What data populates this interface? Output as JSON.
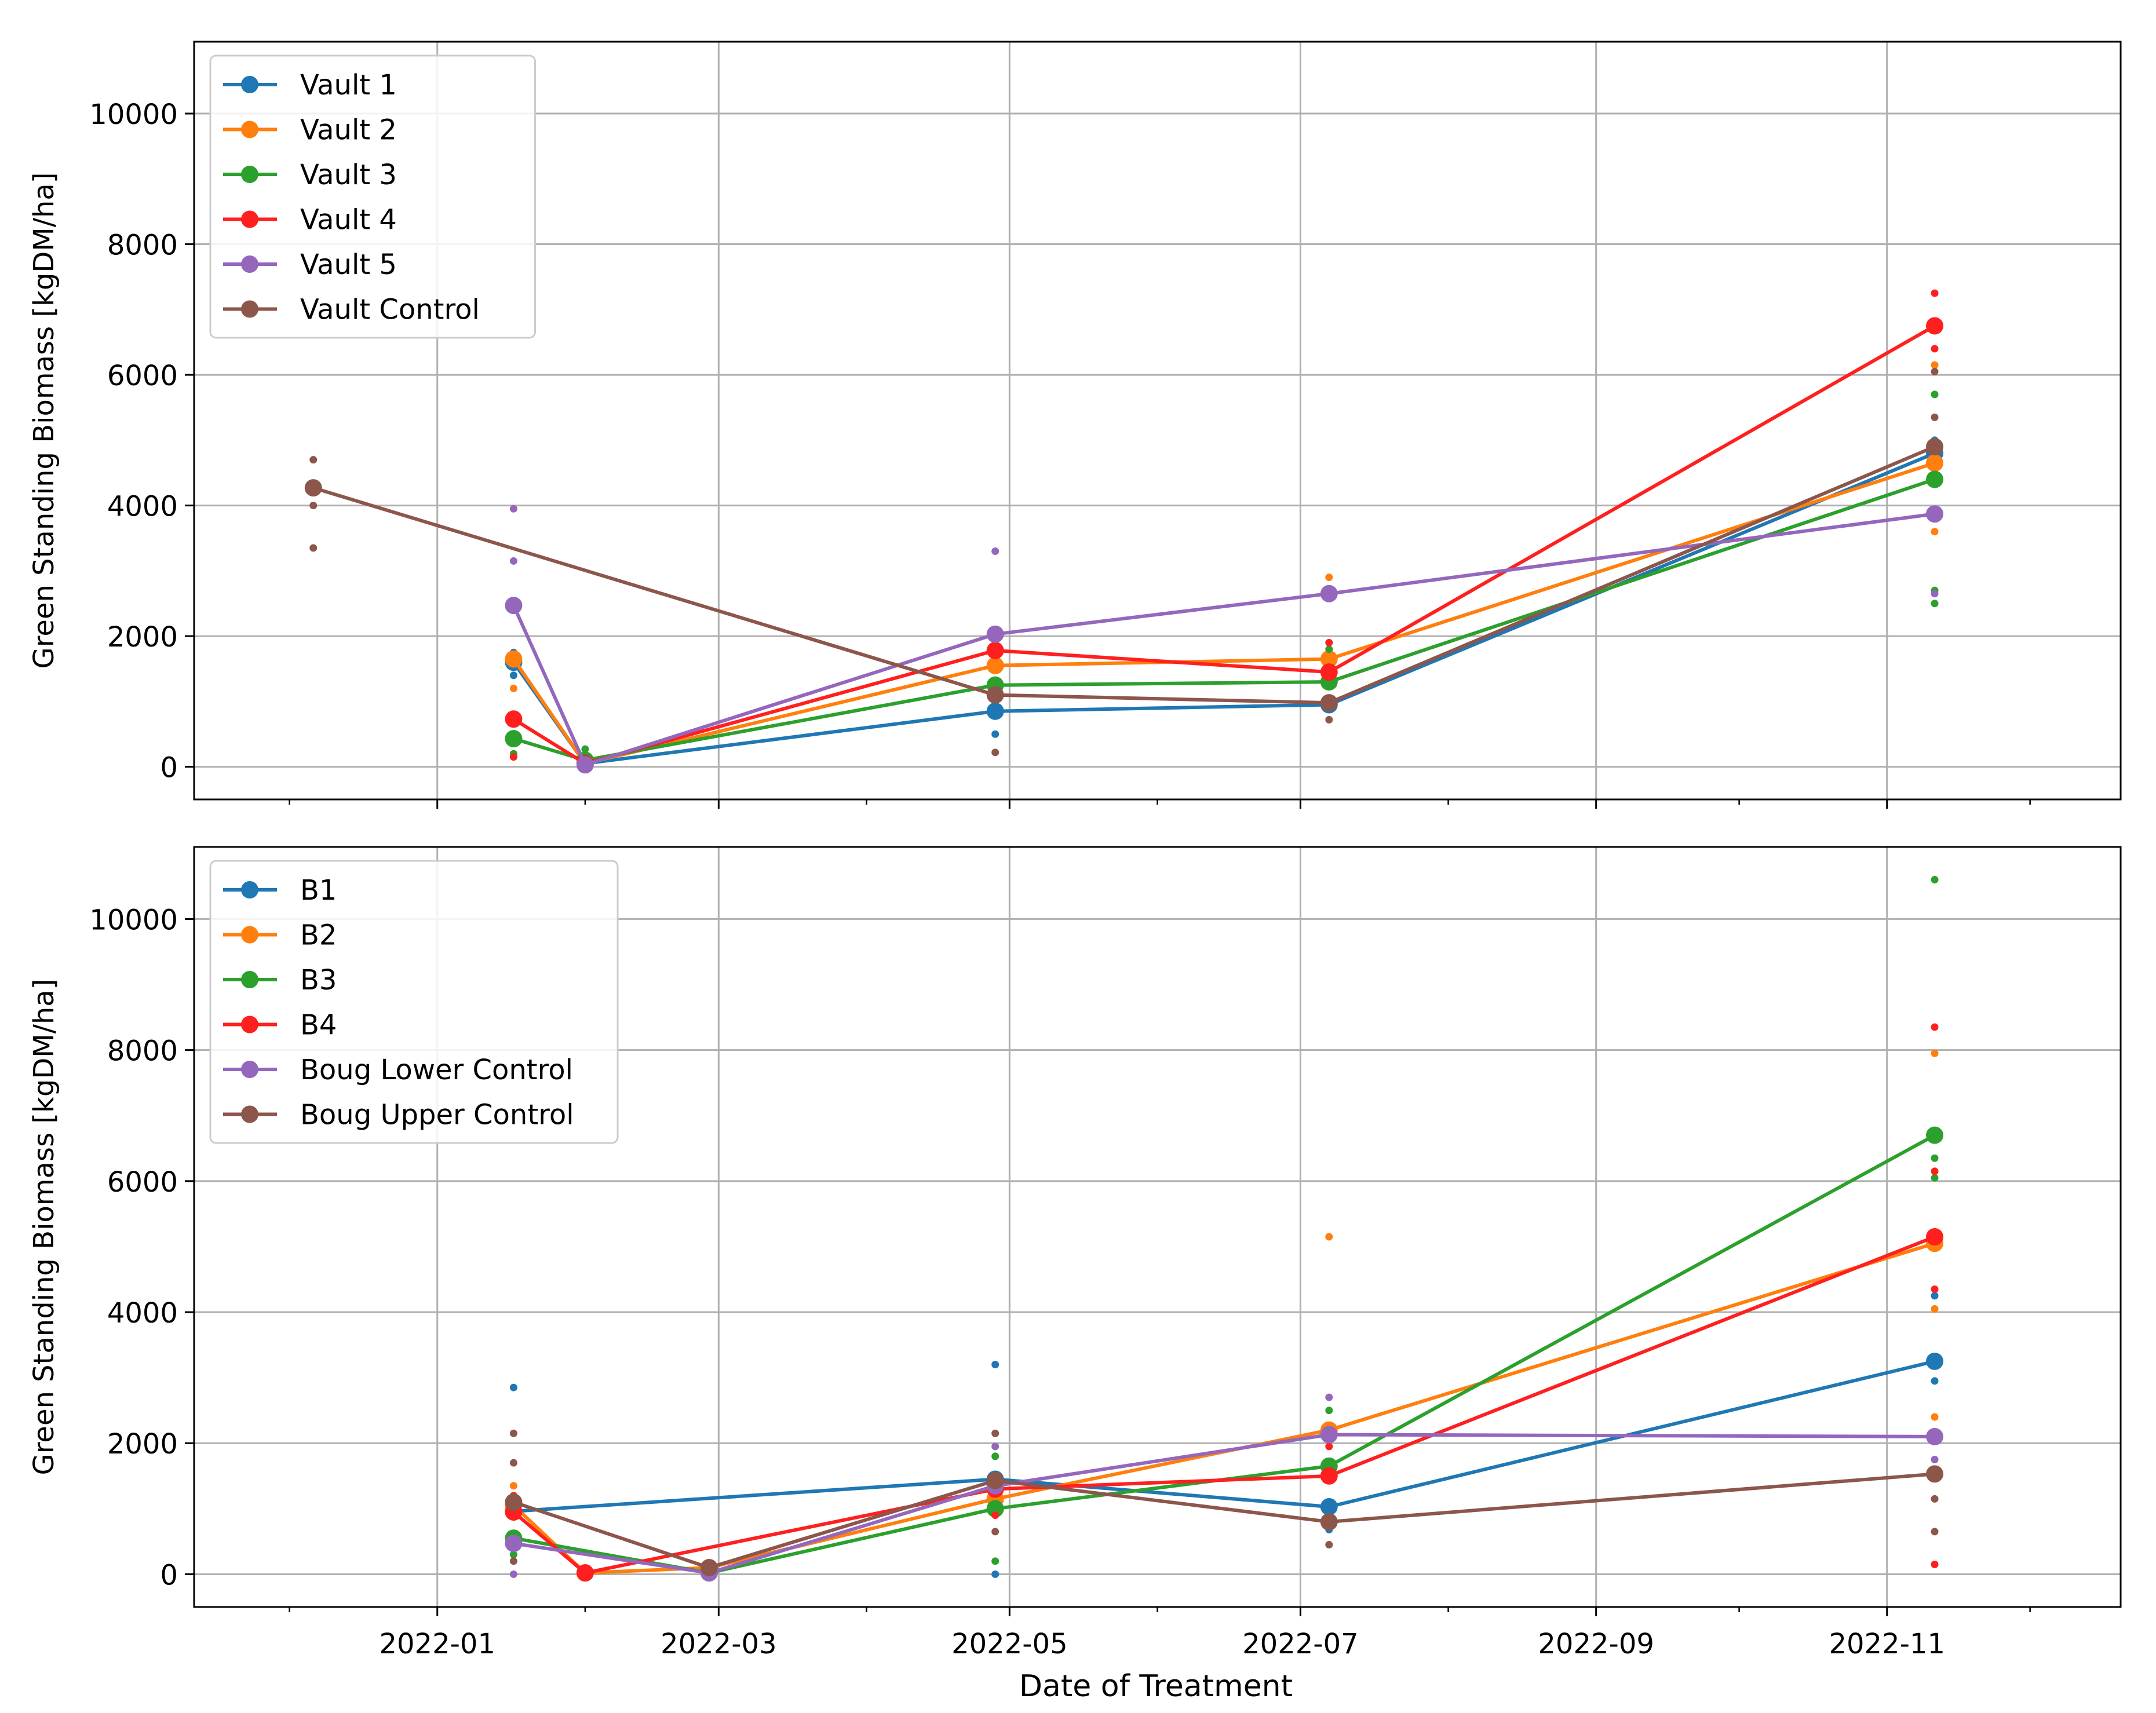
{
  "figure": {
    "xlabel": "Date of Treatment",
    "x_ticks": [
      "2022-01-01",
      "2022-03-01",
      "2022-05-01",
      "2022-07-01",
      "2022-09-01",
      "2022-11-01"
    ],
    "x_tick_labels": [
      "2022-01",
      "2022-03",
      "2022-05",
      "2022-07",
      "2022-09",
      "2022-11"
    ],
    "x_minor_ticks": [
      "2021-12-01",
      "2022-02-01",
      "2022-04-01",
      "2022-06-01",
      "2022-08-01",
      "2022-10-01",
      "2022-12-01"
    ],
    "xlim": [
      "2021-11-11",
      "2022-12-20"
    ],
    "colors": {
      "blue": "#1f77b4",
      "orange": "#ff7f0e",
      "green": "#2ca02c",
      "red": "#ff1f1f",
      "purple": "#9467bd",
      "brown": "#8c564b"
    }
  },
  "chart_data": [
    {
      "type": "line",
      "ylabel": "Green Standing Biomass [kgDM/ha]",
      "ylim": [
        -500,
        11100
      ],
      "yticks": [
        0,
        2000,
        4000,
        6000,
        8000,
        10000
      ],
      "grid": true,
      "legend": "top-left",
      "series": [
        {
          "name": "Vault 1",
          "color": "#1f77b4",
          "x": [
            "2022-01-17",
            "2022-02-01",
            "2022-04-28",
            "2022-07-07",
            "2022-11-11"
          ],
          "y": [
            1600,
            50,
            850,
            950,
            4800
          ],
          "scatter": [
            [
              "2022-01-17",
              1750
            ],
            [
              "2022-01-17",
              1400
            ],
            [
              "2022-04-28",
              500
            ],
            [
              "2022-04-28",
              1050
            ],
            [
              "2022-11-11",
              5000
            ]
          ]
        },
        {
          "name": "Vault 2",
          "color": "#ff7f0e",
          "x": [
            "2022-01-17",
            "2022-02-01",
            "2022-04-28",
            "2022-07-07",
            "2022-11-11"
          ],
          "y": [
            1650,
            50,
            1550,
            1650,
            4650
          ],
          "scatter": [
            [
              "2022-01-17",
              1200
            ],
            [
              "2022-04-28",
              1750
            ],
            [
              "2022-07-07",
              2900
            ],
            [
              "2022-11-11",
              6150
            ],
            [
              "2022-11-11",
              3600
            ]
          ]
        },
        {
          "name": "Vault 3",
          "color": "#2ca02c",
          "x": [
            "2022-01-17",
            "2022-02-01",
            "2022-04-28",
            "2022-07-07",
            "2022-11-11"
          ],
          "y": [
            430,
            100,
            1250,
            1300,
            4400
          ],
          "scatter": [
            [
              "2022-01-17",
              200
            ],
            [
              "2022-02-01",
              270
            ],
            [
              "2022-04-28",
              1100
            ],
            [
              "2022-07-07",
              1800
            ],
            [
              "2022-11-11",
              5700
            ],
            [
              "2022-11-11",
              2700
            ],
            [
              "2022-11-11",
              2500
            ]
          ]
        },
        {
          "name": "Vault 4",
          "color": "#ff1f1f",
          "x": [
            "2022-01-17",
            "2022-02-01",
            "2022-04-28",
            "2022-07-07",
            "2022-11-11"
          ],
          "y": [
            730,
            50,
            1780,
            1450,
            6750
          ],
          "scatter": [
            [
              "2022-01-17",
              150
            ],
            [
              "2022-04-28",
              2000
            ],
            [
              "2022-07-07",
              1900
            ],
            [
              "2022-11-11",
              7250
            ],
            [
              "2022-11-11",
              6400
            ]
          ]
        },
        {
          "name": "Vault 5",
          "color": "#9467bd",
          "x": [
            "2022-01-17",
            "2022-02-01",
            "2022-04-28",
            "2022-07-07",
            "2022-11-11"
          ],
          "y": [
            2470,
            30,
            2030,
            2650,
            3870
          ],
          "scatter": [
            [
              "2022-01-17",
              3950
            ],
            [
              "2022-01-17",
              3150
            ],
            [
              "2022-04-28",
              3300
            ],
            [
              "2022-11-11",
              2650
            ]
          ]
        },
        {
          "name": "Vault Control",
          "color": "#8c564b",
          "x": [
            "2021-12-06",
            "2022-04-28",
            "2022-07-07",
            "2022-11-11"
          ],
          "y": [
            4270,
            1100,
            980,
            4900
          ],
          "scatter": [
            [
              "2021-12-06",
              4700
            ],
            [
              "2021-12-06",
              3350
            ],
            [
              "2021-12-06",
              4000
            ],
            [
              "2022-04-28",
              220
            ],
            [
              "2022-07-07",
              720
            ],
            [
              "2022-11-11",
              6050
            ],
            [
              "2022-11-11",
              5350
            ]
          ]
        }
      ]
    },
    {
      "type": "line",
      "ylabel": "Green Standing Biomass [kgDM/ha]",
      "ylim": [
        -500,
        11100
      ],
      "yticks": [
        0,
        2000,
        4000,
        6000,
        8000,
        10000
      ],
      "grid": true,
      "legend": "top-left",
      "series": [
        {
          "name": "B1",
          "color": "#1f77b4",
          "x": [
            "2022-01-17",
            "2022-04-28",
            "2022-07-07",
            "2022-11-11"
          ],
          "y": [
            960,
            1450,
            1030,
            3250
          ],
          "scatter": [
            [
              "2022-01-17",
              2850
            ],
            [
              "2022-04-28",
              3200
            ],
            [
              "2022-04-28",
              0
            ],
            [
              "2022-07-07",
              680
            ],
            [
              "2022-11-11",
              3300
            ],
            [
              "2022-11-11",
              2950
            ],
            [
              "2022-11-11",
              4250
            ]
          ]
        },
        {
          "name": "B2",
          "color": "#ff7f0e",
          "x": [
            "2022-01-17",
            "2022-02-01",
            "2022-02-27",
            "2022-04-28",
            "2022-07-07",
            "2022-11-11"
          ],
          "y": [
            1050,
            20,
            100,
            1150,
            2200,
            5050
          ],
          "scatter": [
            [
              "2022-01-17",
              1350
            ],
            [
              "2022-07-07",
              5150
            ],
            [
              "2022-11-11",
              7950
            ],
            [
              "2022-11-11",
              4050
            ],
            [
              "2022-11-11",
              2400
            ]
          ]
        },
        {
          "name": "B3",
          "color": "#2ca02c",
          "x": [
            "2022-01-17",
            "2022-02-27",
            "2022-04-28",
            "2022-07-07",
            "2022-11-11"
          ],
          "y": [
            550,
            20,
            1000,
            1650,
            6700
          ],
          "scatter": [
            [
              "2022-01-17",
              300
            ],
            [
              "2022-04-28",
              1800
            ],
            [
              "2022-04-28",
              200
            ],
            [
              "2022-07-07",
              2500
            ],
            [
              "2022-11-11",
              10600
            ],
            [
              "2022-11-11",
              6350
            ],
            [
              "2022-11-11",
              6050
            ]
          ]
        },
        {
          "name": "B4",
          "color": "#ff1f1f",
          "x": [
            "2022-01-17",
            "2022-02-01",
            "2022-04-28",
            "2022-07-07",
            "2022-11-11"
          ],
          "y": [
            950,
            20,
            1300,
            1500,
            5150
          ],
          "scatter": [
            [
              "2022-01-17",
              1200
            ],
            [
              "2022-04-28",
              900
            ],
            [
              "2022-07-07",
              1950
            ],
            [
              "2022-11-11",
              8350
            ],
            [
              "2022-11-11",
              6150
            ],
            [
              "2022-11-11",
              4350
            ],
            [
              "2022-11-11",
              150
            ]
          ]
        },
        {
          "name": "Boug Lower Control",
          "color": "#9467bd",
          "x": [
            "2022-01-17",
            "2022-02-27",
            "2022-04-28",
            "2022-07-07",
            "2022-11-11"
          ],
          "y": [
            470,
            20,
            1350,
            2130,
            2100
          ],
          "scatter": [
            [
              "2022-01-17",
              0
            ],
            [
              "2022-04-28",
              1950
            ],
            [
              "2022-07-07",
              2700
            ],
            [
              "2022-11-11",
              1750
            ]
          ]
        },
        {
          "name": "Boug Upper Control",
          "color": "#8c564b",
          "x": [
            "2022-01-17",
            "2022-02-27",
            "2022-04-28",
            "2022-07-07",
            "2022-11-11"
          ],
          "y": [
            1100,
            100,
            1430,
            800,
            1530
          ],
          "scatter": [
            [
              "2022-01-17",
              2150
            ],
            [
              "2022-01-17",
              1700
            ],
            [
              "2022-01-17",
              200
            ],
            [
              "2022-04-28",
              2150
            ],
            [
              "2022-04-28",
              650
            ],
            [
              "2022-07-07",
              450
            ],
            [
              "2022-11-11",
              1150
            ],
            [
              "2022-11-11",
              650
            ]
          ]
        }
      ]
    }
  ]
}
